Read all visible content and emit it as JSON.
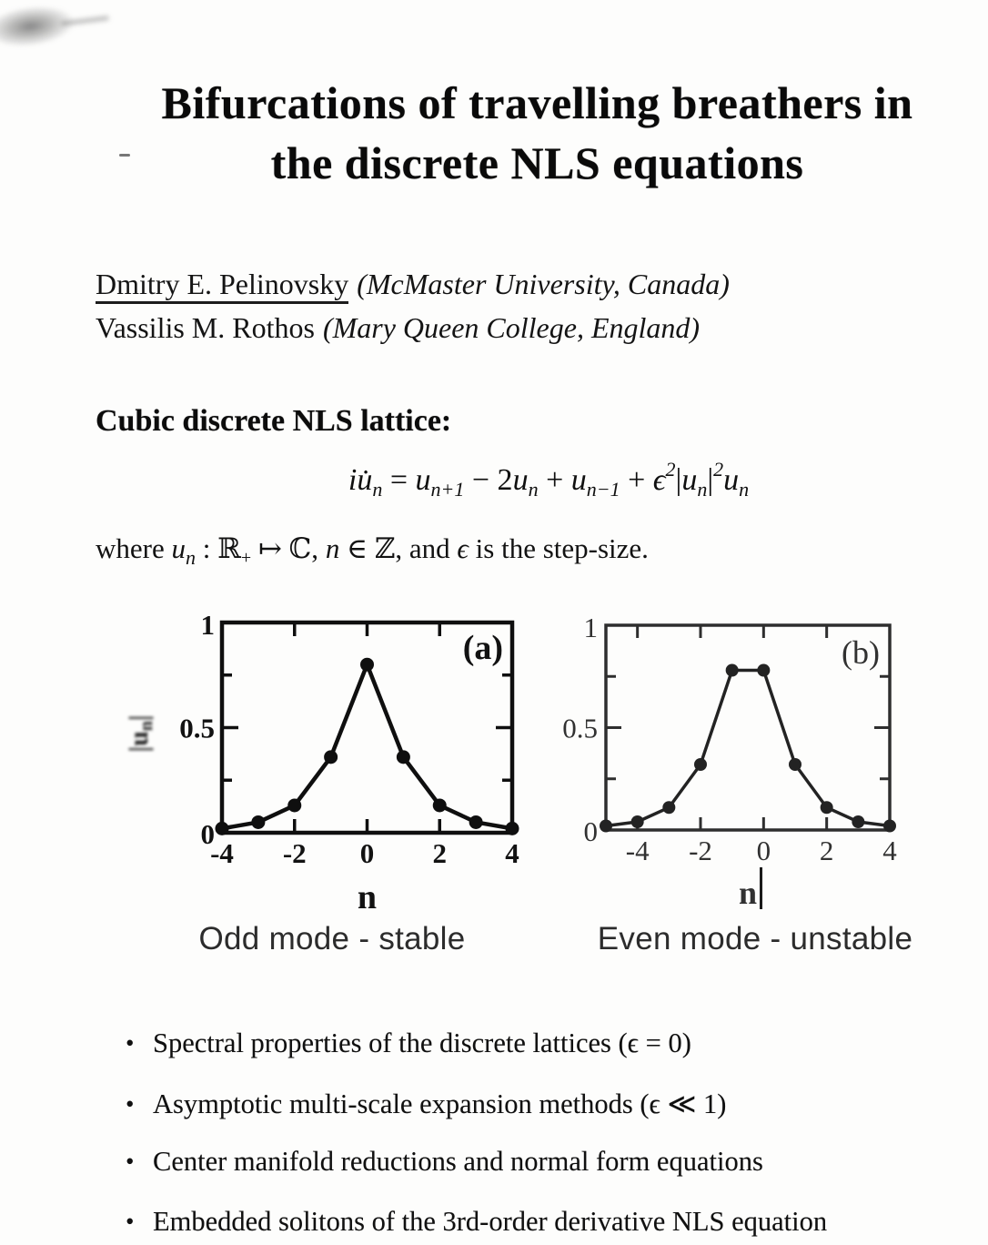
{
  "title": {
    "line1": "Bifurcations of travelling breathers in",
    "line2": "the discrete NLS equations"
  },
  "authors": [
    {
      "name": "Dmitry E. Pelinovsky",
      "affiliation": "(McMaster University, Canada)"
    },
    {
      "name": "Vassilis M. Rothos",
      "affiliation": "(Mary Queen College, England)"
    }
  ],
  "lattice_section": {
    "heading": "Cubic discrete NLS lattice:",
    "equation": {
      "lhs": "iu̇",
      "lhs_sub": "n",
      "eq": " = ",
      "u1": "u",
      "u1_sub": "n+1",
      "op1": " − 2",
      "u2": "u",
      "u2_sub": "n",
      "op2": " + ",
      "u3": "u",
      "u3_sub": "n−1",
      "op3": " + ",
      "eps": "ϵ",
      "eps_sup": "2",
      "bar1": "|",
      "u4": "u",
      "u4_sub": "n",
      "bar2": "|",
      "bar_sup": "2",
      "u5": "u",
      "u5_sub": "n"
    },
    "where": {
      "t1": "where ",
      "u": "u",
      "u_sub": "n",
      "t2": " : ℝ",
      "t2_sub": "+",
      "t3": " ↦ ℂ, ",
      "n": "n",
      "t4": " ∈ ℤ, and ",
      "eps": "ϵ",
      "t5": " is the step-size."
    }
  },
  "chart_data": [
    {
      "type": "line",
      "panel_label": "(a)",
      "caption": "Odd mode - stable",
      "xlabel": "n",
      "ylabel_tokens": [
        "|u",
        "n",
        "|"
      ],
      "x": [
        -4,
        -3,
        -2,
        -1,
        0,
        1,
        2,
        3,
        4
      ],
      "y": [
        0.02,
        0.05,
        0.13,
        0.36,
        0.8,
        0.36,
        0.13,
        0.05,
        0.02
      ],
      "xlim": [
        -4,
        4
      ],
      "ylim": [
        0,
        1
      ],
      "xticks": [
        -4,
        -2,
        0,
        2,
        4
      ],
      "yticks": [
        0,
        0.5,
        1
      ],
      "yticks_minor": [
        0.25,
        0.5,
        0.75
      ],
      "grid": false,
      "marker": "filled-circle"
    },
    {
      "type": "line",
      "panel_label": "(b)",
      "caption": "Even mode - unstable",
      "xlabel": "n",
      "ylabel_tokens": [],
      "x": [
        -5,
        -4,
        -3,
        -2,
        -1,
        0,
        1,
        2,
        3,
        4
      ],
      "y": [
        0.02,
        0.04,
        0.11,
        0.32,
        0.78,
        0.78,
        0.32,
        0.11,
        0.04,
        0.02
      ],
      "xlim": [
        -5,
        4
      ],
      "ylim": [
        0,
        1
      ],
      "xticks": [
        -4,
        -2,
        0,
        2,
        4
      ],
      "yticks": [
        0,
        0.5,
        1
      ],
      "yticks_minor": [
        0.25,
        0.5,
        0.75
      ],
      "grid": false,
      "marker": "filled-circle"
    }
  ],
  "bullets": [
    "Spectral properties of the discrete lattices (ϵ = 0)",
    "Asymptotic multi-scale expansion methods (ϵ ≪ 1)",
    "Center manifold reductions and normal form equations",
    "Embedded solitons of the 3rd-order derivative NLS equation"
  ]
}
